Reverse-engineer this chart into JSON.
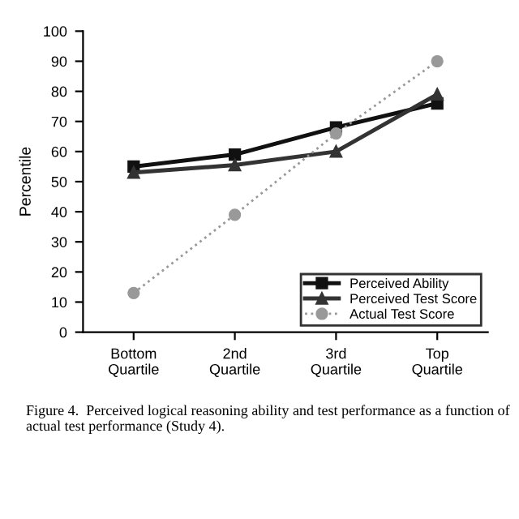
{
  "chart_data": {
    "type": "line",
    "ylabel": "Percentile",
    "categories": [
      "Bottom\nQuartile",
      "2nd\nQuartile",
      "3rd\nQuartile",
      "Top\nQuartile"
    ],
    "series": [
      {
        "name": "Perceived Ability",
        "color": "#111111",
        "marker": "square",
        "line_style": "solid",
        "values": [
          55,
          59,
          68,
          76
        ]
      },
      {
        "name": "Perceived Test Score",
        "color": "#333333",
        "marker": "triangle",
        "line_style": "solid",
        "values": [
          53,
          55.5,
          60,
          79
        ]
      },
      {
        "name": "Actual Test Score",
        "color": "#999999",
        "marker": "circle",
        "line_style": "dotted",
        "values": [
          13,
          39,
          66,
          90
        ]
      }
    ],
    "ylim": [
      0,
      100
    ],
    "yticks": [
      0,
      10,
      20,
      30,
      40,
      50,
      60,
      70,
      80,
      90,
      100
    ],
    "grid": false,
    "legend": "bottom right",
    "annotations": [
      "Figure 4.  Perceived logical reasoning ability and test performance as a function of actual test performance (Study 4)."
    ]
  }
}
